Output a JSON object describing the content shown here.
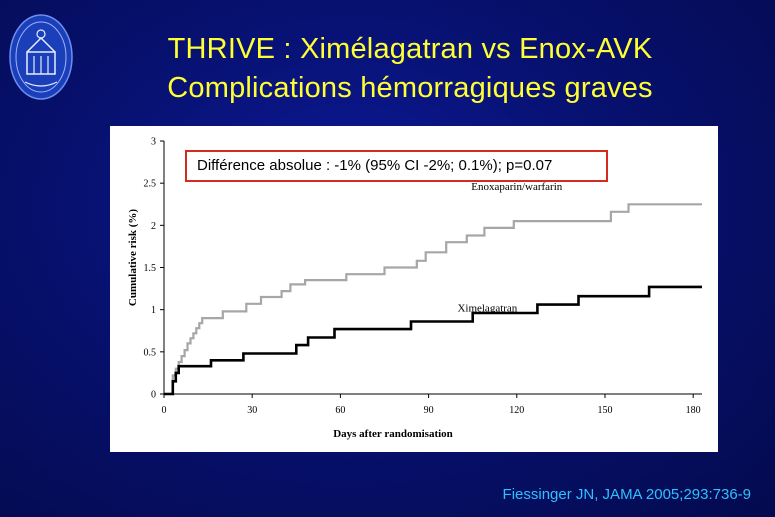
{
  "slide": {
    "title_line1": "THRIVE : Ximélagatran vs Enox-AVK",
    "title_line2": "Complications hémorragiques graves",
    "citation": "Fiessinger JN, JAMA 2005;293:736-9"
  },
  "colors": {
    "title": "#ffff33",
    "citation": "#2ec0ff",
    "annotation_border": "#d52b1e",
    "series_enox": "#a6a6a6",
    "series_xime": "#000000"
  },
  "chart_data": {
    "type": "line",
    "xlabel": "Days after randomisation",
    "ylabel": "Cumulative risk (%)",
    "xlim": [
      0,
      183
    ],
    "ylim": [
      0,
      3
    ],
    "x_ticks": [
      "0",
      "30",
      "60",
      "90",
      "120",
      "150",
      "180"
    ],
    "y_ticks": [
      "0",
      "0.5",
      "1",
      "1.5",
      "2",
      "2.5",
      "3"
    ],
    "annotation": "Différence absolue : -1% (95% CI -2%; 0.1%); p=0.07",
    "series": [
      {
        "name": "Enoxaparin/warfarin",
        "color": "#a6a6a6",
        "points": [
          [
            0,
            0
          ],
          [
            3,
            0
          ],
          [
            3,
            0.22
          ],
          [
            4,
            0.22
          ],
          [
            4,
            0.3
          ],
          [
            5,
            0.3
          ],
          [
            5,
            0.38
          ],
          [
            6,
            0.38
          ],
          [
            6,
            0.45
          ],
          [
            7,
            0.45
          ],
          [
            7,
            0.52
          ],
          [
            8,
            0.52
          ],
          [
            8,
            0.6
          ],
          [
            9,
            0.6
          ],
          [
            9,
            0.66
          ],
          [
            10,
            0.66
          ],
          [
            10,
            0.72
          ],
          [
            11,
            0.72
          ],
          [
            11,
            0.78
          ],
          [
            12,
            0.78
          ],
          [
            12,
            0.84
          ],
          [
            13,
            0.84
          ],
          [
            13,
            0.9
          ],
          [
            20,
            0.9
          ],
          [
            20,
            0.98
          ],
          [
            28,
            0.98
          ],
          [
            28,
            1.07
          ],
          [
            33,
            1.07
          ],
          [
            33,
            1.15
          ],
          [
            40,
            1.15
          ],
          [
            40,
            1.22
          ],
          [
            43,
            1.22
          ],
          [
            43,
            1.3
          ],
          [
            48,
            1.3
          ],
          [
            48,
            1.35
          ],
          [
            62,
            1.35
          ],
          [
            62,
            1.42
          ],
          [
            75,
            1.42
          ],
          [
            75,
            1.5
          ],
          [
            86,
            1.5
          ],
          [
            86,
            1.58
          ],
          [
            89,
            1.58
          ],
          [
            89,
            1.68
          ],
          [
            96,
            1.68
          ],
          [
            96,
            1.8
          ],
          [
            103,
            1.8
          ],
          [
            103,
            1.88
          ],
          [
            109,
            1.88
          ],
          [
            109,
            1.97
          ],
          [
            119,
            1.97
          ],
          [
            119,
            2.05
          ],
          [
            152,
            2.05
          ],
          [
            152,
            2.16
          ],
          [
            158,
            2.16
          ],
          [
            158,
            2.25
          ],
          [
            183,
            2.25
          ]
        ]
      },
      {
        "name": "Ximelagatran",
        "color": "#000000",
        "points": [
          [
            0,
            0
          ],
          [
            3,
            0
          ],
          [
            3,
            0.15
          ],
          [
            4,
            0.15
          ],
          [
            4,
            0.25
          ],
          [
            5,
            0.25
          ],
          [
            5,
            0.33
          ],
          [
            16,
            0.33
          ],
          [
            16,
            0.4
          ],
          [
            27,
            0.4
          ],
          [
            27,
            0.48
          ],
          [
            45,
            0.48
          ],
          [
            45,
            0.58
          ],
          [
            49,
            0.58
          ],
          [
            49,
            0.67
          ],
          [
            58,
            0.67
          ],
          [
            58,
            0.77
          ],
          [
            84,
            0.77
          ],
          [
            84,
            0.86
          ],
          [
            105,
            0.86
          ],
          [
            105,
            0.96
          ],
          [
            127,
            0.96
          ],
          [
            127,
            1.06
          ],
          [
            141,
            1.06
          ],
          [
            141,
            1.16
          ],
          [
            165,
            1.16
          ],
          [
            165,
            1.27
          ],
          [
            183,
            1.27
          ]
        ]
      }
    ]
  }
}
